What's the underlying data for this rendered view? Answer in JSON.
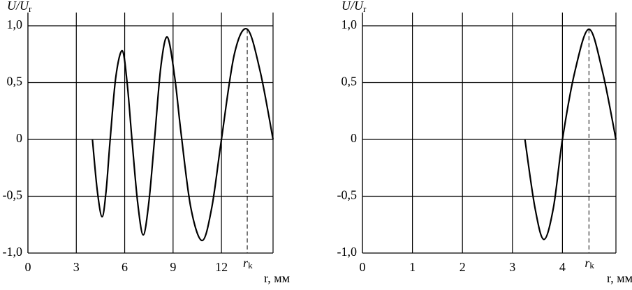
{
  "chart_data": [
    {
      "type": "line",
      "ylabel": "U/U",
      "ylabel_sub": "r",
      "xlabel": "r, мм",
      "x": [
        4.0,
        4.3,
        4.6,
        4.85,
        5.1,
        5.45,
        5.85,
        6.15,
        6.45,
        6.8,
        7.15,
        7.5,
        7.85,
        8.25,
        8.65,
        9.1,
        9.5,
        10.1,
        10.8,
        11.4,
        12.0,
        12.8,
        13.6,
        14.4,
        15.2
      ],
      "series": [
        {
          "color": "#000000",
          "values": [
            0,
            -0.45,
            -0.68,
            -0.45,
            0,
            0.55,
            0.78,
            0.5,
            0,
            -0.55,
            -0.84,
            -0.55,
            0,
            0.65,
            0.9,
            0.55,
            0.05,
            -0.6,
            -0.89,
            -0.6,
            0,
            0.75,
            0.97,
            0.6,
            0
          ]
        }
      ],
      "xlim": [
        0,
        15.2
      ],
      "ylim": [
        -1.0,
        1.0
      ],
      "xticks": [
        0,
        3,
        6,
        9,
        12
      ],
      "yticks": [
        {
          "value": 1.0,
          "label": "1,0"
        },
        {
          "value": 0.5,
          "label": "0,5"
        },
        0,
        {
          "value": -0.5,
          "label": "-0,5"
        },
        {
          "value": -1.0,
          "label": "-1,0"
        }
      ],
      "marker": {
        "x": 13.6,
        "y": 0.97,
        "label": "r",
        "sub": "k"
      },
      "grid": true
    },
    {
      "type": "line",
      "ylabel": "U/U",
      "ylabel_sub": "r",
      "xlabel": "r, мм",
      "x": [
        3.25,
        3.45,
        3.63,
        3.82,
        4.0,
        4.25,
        4.53,
        4.8,
        5.07
      ],
      "series": [
        {
          "color": "#000000",
          "values": [
            0,
            -0.6,
            -0.88,
            -0.6,
            0,
            0.6,
            0.97,
            0.6,
            0
          ]
        }
      ],
      "xlim": [
        0,
        5.07
      ],
      "ylim": [
        -1.0,
        1.0
      ],
      "xticks": [
        0,
        1,
        2,
        3,
        4
      ],
      "yticks": [
        {
          "value": 1.0,
          "label": "1,0"
        },
        {
          "value": 0.5,
          "label": "0,5"
        },
        0,
        {
          "value": -0.5,
          "label": "-0,5"
        },
        {
          "value": -1.0,
          "label": "-1,0"
        }
      ],
      "marker": {
        "x": 4.53,
        "y": 0.97,
        "label": "r",
        "sub": "k"
      },
      "grid": true
    }
  ]
}
